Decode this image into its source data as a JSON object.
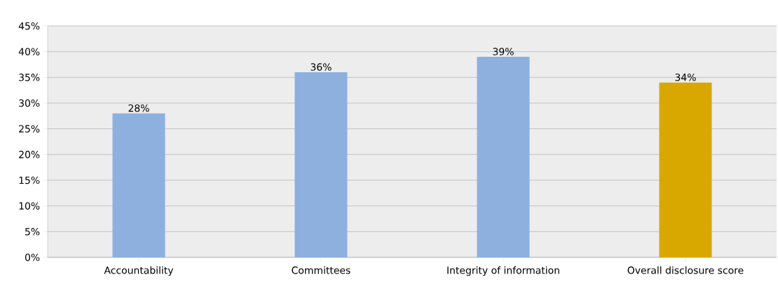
{
  "chart_data": {
    "type": "bar",
    "categories": [
      "Accountability",
      "Committees",
      "Integrity of information",
      "Overall disclosure score"
    ],
    "values": [
      28,
      36,
      39,
      34
    ],
    "colors": [
      "#8db0de",
      "#8db0de",
      "#8db0de",
      "#d9a800"
    ],
    "value_labels": [
      "28%",
      "36%",
      "39%",
      "34%"
    ],
    "ylim": [
      0,
      45
    ],
    "yticks": [
      {
        "value": 0,
        "label": "0%"
      },
      {
        "value": 5,
        "label": "5%"
      },
      {
        "value": 10,
        "label": "10%"
      },
      {
        "value": 15,
        "label": "15%"
      },
      {
        "value": 20,
        "label": "20%"
      },
      {
        "value": 25,
        "label": "25%"
      },
      {
        "value": 30,
        "label": "30%"
      },
      {
        "value": 35,
        "label": "35%"
      },
      {
        "value": 40,
        "label": "40%"
      },
      {
        "value": 45,
        "label": "45%"
      }
    ],
    "grid": "y"
  }
}
